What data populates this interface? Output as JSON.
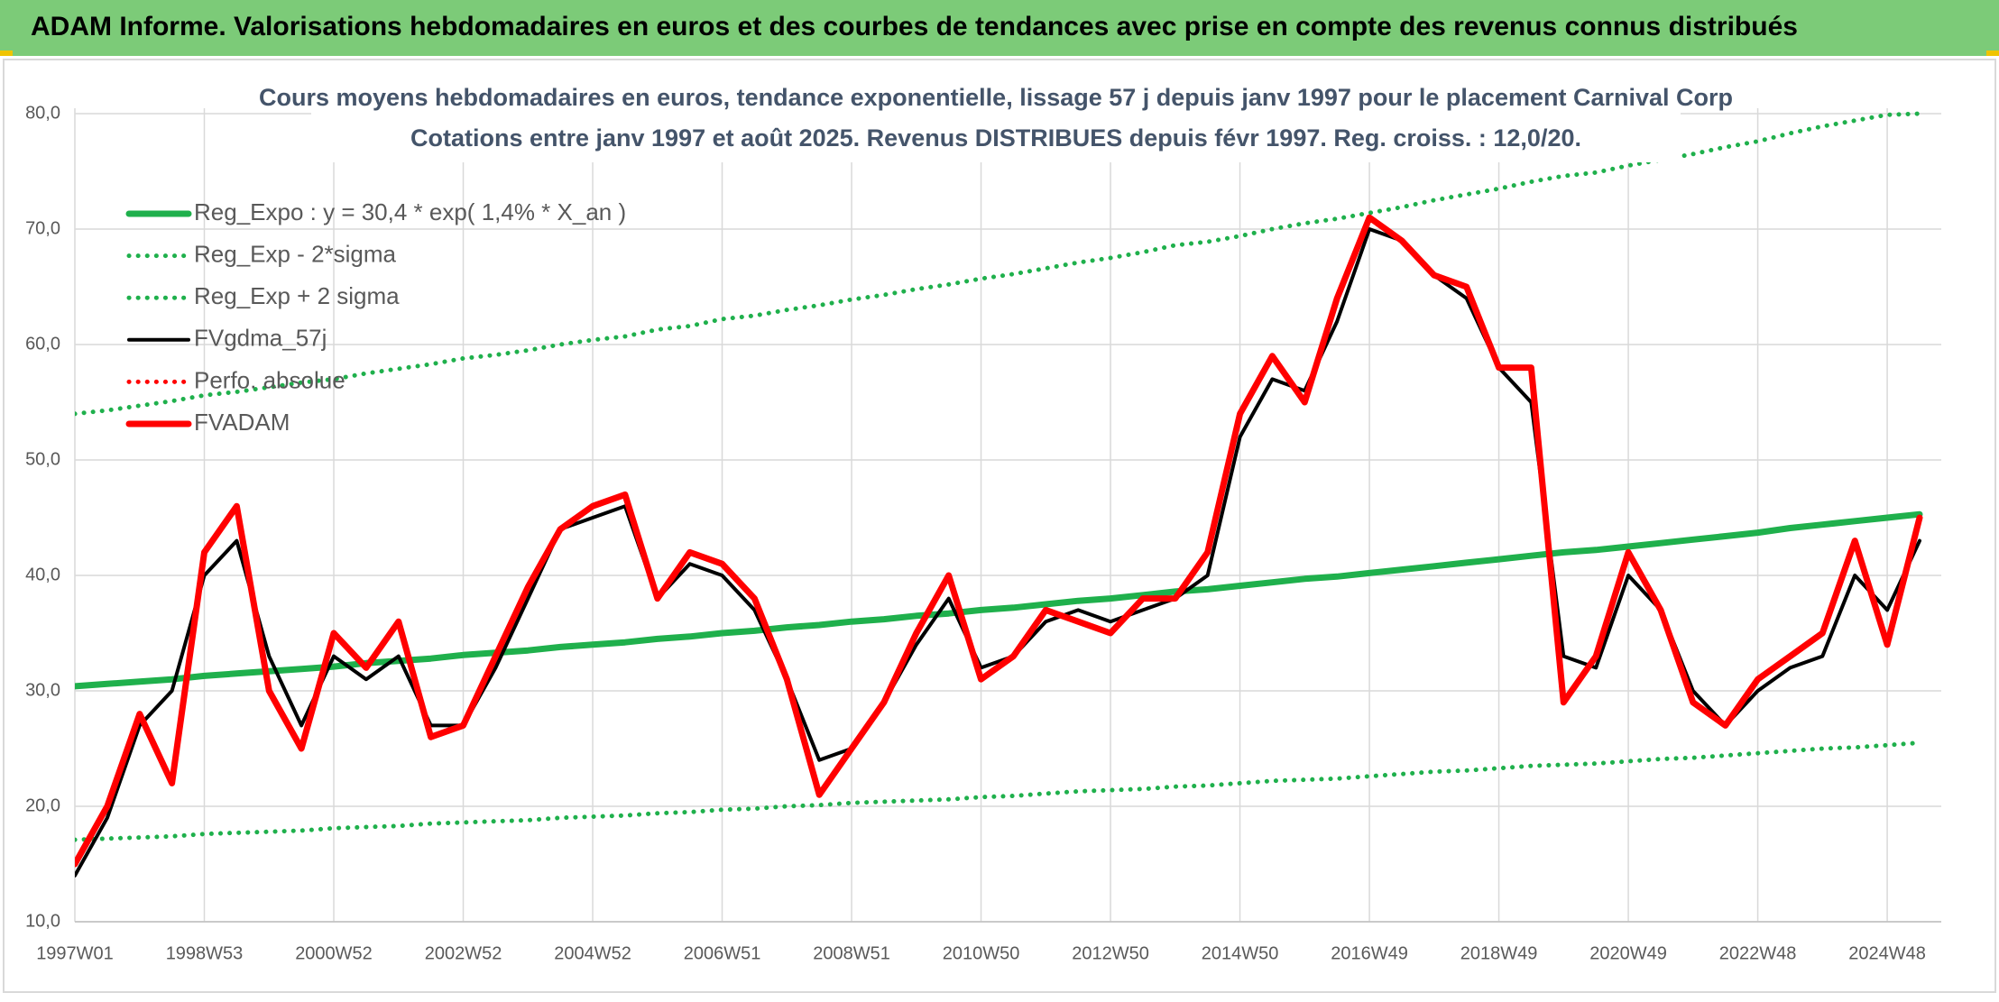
{
  "header": {
    "title": "ADAM Informe. Valorisations hebdomadaires en euros et des courbes de tendances avec prise en compte des revenus connus distribués"
  },
  "chart_data": {
    "type": "line",
    "title": "Cours moyens hebdomadaires en euros, tendance exponentielle, lissage 57 j depuis janv 1997 pour le placement Carnival Corp",
    "subtitle": "Cotations entre janv 1997 et août 2025. Revenus DISTRIBUES depuis févr 1997. Reg. croiss. : 12,0/20.",
    "categories": [
      "1997W01",
      null,
      null,
      null,
      "1998W53",
      null,
      null,
      null,
      "2000W52",
      null,
      null,
      null,
      "2002W52",
      null,
      null,
      null,
      "2004W52",
      null,
      null,
      null,
      "2006W51",
      null,
      null,
      null,
      "2008W51",
      null,
      null,
      null,
      "2010W50",
      null,
      null,
      null,
      "2012W50",
      null,
      null,
      null,
      "2014W50",
      null,
      null,
      null,
      "2016W49",
      null,
      null,
      null,
      "2018W49",
      null,
      null,
      null,
      "2020W49",
      null,
      null,
      null,
      "2022W48",
      null,
      null,
      null,
      "2024W48",
      null
    ],
    "ylim": [
      10,
      80
    ],
    "yticks": [
      {
        "value": 10,
        "label": "10,0"
      },
      {
        "value": 20,
        "label": "20,0"
      },
      {
        "value": 30,
        "label": "30,0"
      },
      {
        "value": 40,
        "label": "40,0"
      },
      {
        "value": 50,
        "label": "50,0"
      },
      {
        "value": 60,
        "label": "60,0"
      },
      {
        "value": 70,
        "label": "70,0"
      },
      {
        "value": 80,
        "label": "80,0"
      }
    ],
    "grid": true,
    "legend": "upper left",
    "series": [
      {
        "name": "Reg_Expo : y = 30,4 * exp( 1,4% *  X_an )",
        "color": "#1fb04c",
        "style": "solid",
        "values": [
          30.4,
          30.6,
          30.8,
          31.0,
          31.3,
          31.5,
          31.7,
          31.9,
          32.1,
          32.4,
          32.6,
          32.8,
          33.1,
          33.3,
          33.5,
          33.8,
          34.0,
          34.2,
          34.5,
          34.7,
          35.0,
          35.2,
          35.5,
          35.7,
          36.0,
          36.2,
          36.5,
          36.7,
          37.0,
          37.2,
          37.5,
          37.8,
          38.0,
          38.3,
          38.6,
          38.8,
          39.1,
          39.4,
          39.7,
          39.9,
          40.2,
          40.5,
          40.8,
          41.1,
          41.4,
          41.7,
          42.0,
          42.2,
          42.5,
          42.8,
          43.1,
          43.4,
          43.7,
          44.1,
          44.4,
          44.7,
          45.0,
          45.3
        ]
      },
      {
        "name": "Reg_Exp - 2*sigma",
        "color": "#1fb04c",
        "style": "dotted",
        "values": [
          17.1,
          17.2,
          17.3,
          17.4,
          17.6,
          17.7,
          17.8,
          17.9,
          18.1,
          18.2,
          18.3,
          18.5,
          18.6,
          18.7,
          18.8,
          19.0,
          19.1,
          19.2,
          19.4,
          19.5,
          19.7,
          19.8,
          20.0,
          20.1,
          20.3,
          20.4,
          20.5,
          20.6,
          20.8,
          20.9,
          21.1,
          21.3,
          21.4,
          21.5,
          21.7,
          21.8,
          22.0,
          22.2,
          22.3,
          22.4,
          22.6,
          22.8,
          23.0,
          23.1,
          23.3,
          23.5,
          23.6,
          23.7,
          23.9,
          24.1,
          24.2,
          24.4,
          24.6,
          24.8,
          25.0,
          25.1,
          25.3,
          25.5
        ]
      },
      {
        "name": "Reg_Exp + 2 sigma",
        "color": "#1fb04c",
        "style": "dotted",
        "values": [
          54.0,
          54.3,
          54.7,
          55.1,
          55.6,
          55.9,
          56.3,
          56.7,
          57.0,
          57.5,
          57.9,
          58.3,
          58.8,
          59.1,
          59.5,
          60.0,
          60.4,
          60.7,
          61.3,
          61.6,
          62.2,
          62.5,
          63.0,
          63.4,
          63.9,
          64.3,
          64.8,
          65.2,
          65.7,
          66.1,
          66.6,
          67.1,
          67.5,
          68.0,
          68.6,
          68.9,
          69.4,
          70.0,
          70.5,
          70.9,
          71.4,
          71.9,
          72.5,
          73.0,
          73.5,
          74.1,
          74.6,
          74.9,
          75.5,
          76.0,
          76.5,
          77.1,
          77.6,
          78.3,
          78.9,
          79.4,
          79.9,
          80.0
        ]
      },
      {
        "name": "FVgdma_57j",
        "color": "#000000",
        "style": "solid",
        "values": [
          14,
          19,
          27,
          30,
          40,
          43,
          33,
          27,
          33,
          31,
          33,
          27,
          27,
          32,
          38,
          44,
          45,
          46,
          38,
          41,
          40,
          37,
          31,
          24,
          25,
          29,
          34,
          38,
          32,
          33,
          36,
          37,
          36,
          37,
          38,
          40,
          52,
          57,
          56,
          62,
          70,
          69,
          66,
          64,
          58,
          55,
          33,
          32,
          40,
          37,
          30,
          27,
          30,
          32,
          33,
          40,
          37,
          43
        ]
      },
      {
        "name": "Perfo. absolue",
        "color": "#ff0000",
        "style": "dotted",
        "values": [
          null,
          null,
          null,
          null,
          null,
          null,
          null,
          null,
          null,
          null,
          null,
          null,
          null,
          null,
          null,
          null,
          null,
          null,
          null,
          null,
          null,
          null,
          null,
          null,
          null,
          null,
          null,
          null,
          null,
          null,
          null,
          null,
          null,
          null,
          null,
          null,
          null,
          null,
          null,
          null,
          null,
          null,
          null,
          null,
          null,
          null,
          null,
          null,
          null,
          null,
          null,
          null,
          null,
          null,
          null,
          null,
          null,
          null
        ]
      },
      {
        "name": "FVADAM",
        "color": "#ff0000",
        "style": "solid",
        "values": [
          15,
          20,
          28,
          22,
          42,
          46,
          30,
          25,
          35,
          32,
          36,
          26,
          27,
          33,
          39,
          44,
          46,
          47,
          38,
          42,
          41,
          38,
          31,
          21,
          25,
          29,
          35,
          40,
          31,
          33,
          37,
          36,
          35,
          38,
          38,
          42,
          54,
          59,
          55,
          64,
          71,
          69,
          66,
          65,
          58,
          58,
          29,
          33,
          42,
          37,
          29,
          27,
          31,
          33,
          35,
          43,
          34,
          45
        ]
      }
    ]
  }
}
